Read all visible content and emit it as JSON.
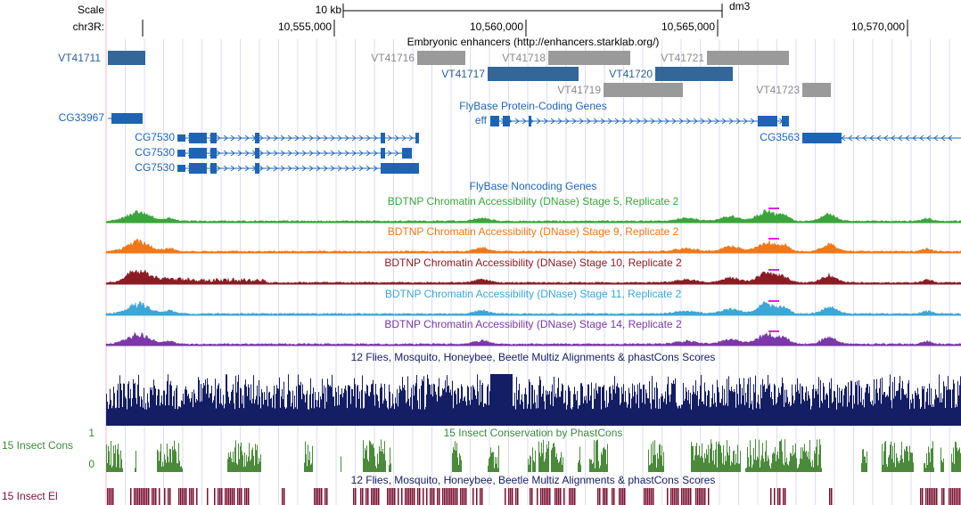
{
  "ruler": {
    "scale_label": "Scale",
    "scale_text": "10 kb",
    "assembly": "dm3",
    "chrom": "chr3R:",
    "ticks": [
      "10,555,000",
      "10,560,000",
      "10,565,000",
      "10,570,000"
    ]
  },
  "tracks": {
    "enhancers": {
      "title": "Embryonic enhancers (http://enhancers.starklab.org/)",
      "items": [
        "VT41711",
        "VT41716",
        "VT41718",
        "VT41721",
        "VT41717",
        "VT41720",
        "VT41719",
        "VT41723"
      ]
    },
    "genes": {
      "title": "FlyBase Protein-Coding Genes",
      "items": [
        "CG33967",
        "eff",
        "CG7530",
        "CG7530",
        "CG7530",
        "CG3563"
      ]
    },
    "noncoding": {
      "title": "FlyBase Noncoding Genes"
    },
    "dnase": [
      {
        "title": "BDTNP Chromatin Accessibility (DNase) Stage 5, Replicate 2",
        "color": "#3aa53a"
      },
      {
        "title": "BDTNP Chromatin Accessibility (DNase) Stage 9, Replicate 2",
        "color": "#f07818"
      },
      {
        "title": "BDTNP Chromatin Accessibility (DNase) Stage 10, Replicate 2",
        "color": "#8b1c24"
      },
      {
        "title": "BDTNP Chromatin Accessibility (DNase) Stage 11, Replicate 2",
        "color": "#3ca6d6"
      },
      {
        "title": "BDTNP Chromatin Accessibility (DNase) Stage 14, Replicate 2",
        "color": "#7a38a8"
      }
    ],
    "multiz": {
      "title": "12 Flies, Mosquito, Honeybee, Beetle Multiz Alignments & phastCons Scores"
    },
    "cons": {
      "title": "15 Insect Conservation by PhastCons",
      "side_label": "15 Insect Cons",
      "axis_max": "1",
      "axis_min": "0"
    },
    "elements": {
      "title": "12 Flies, Mosquito, Honeybee, Beetle Multiz Alignments & phastCons Scores",
      "side_label": "15 Insect El"
    }
  }
}
